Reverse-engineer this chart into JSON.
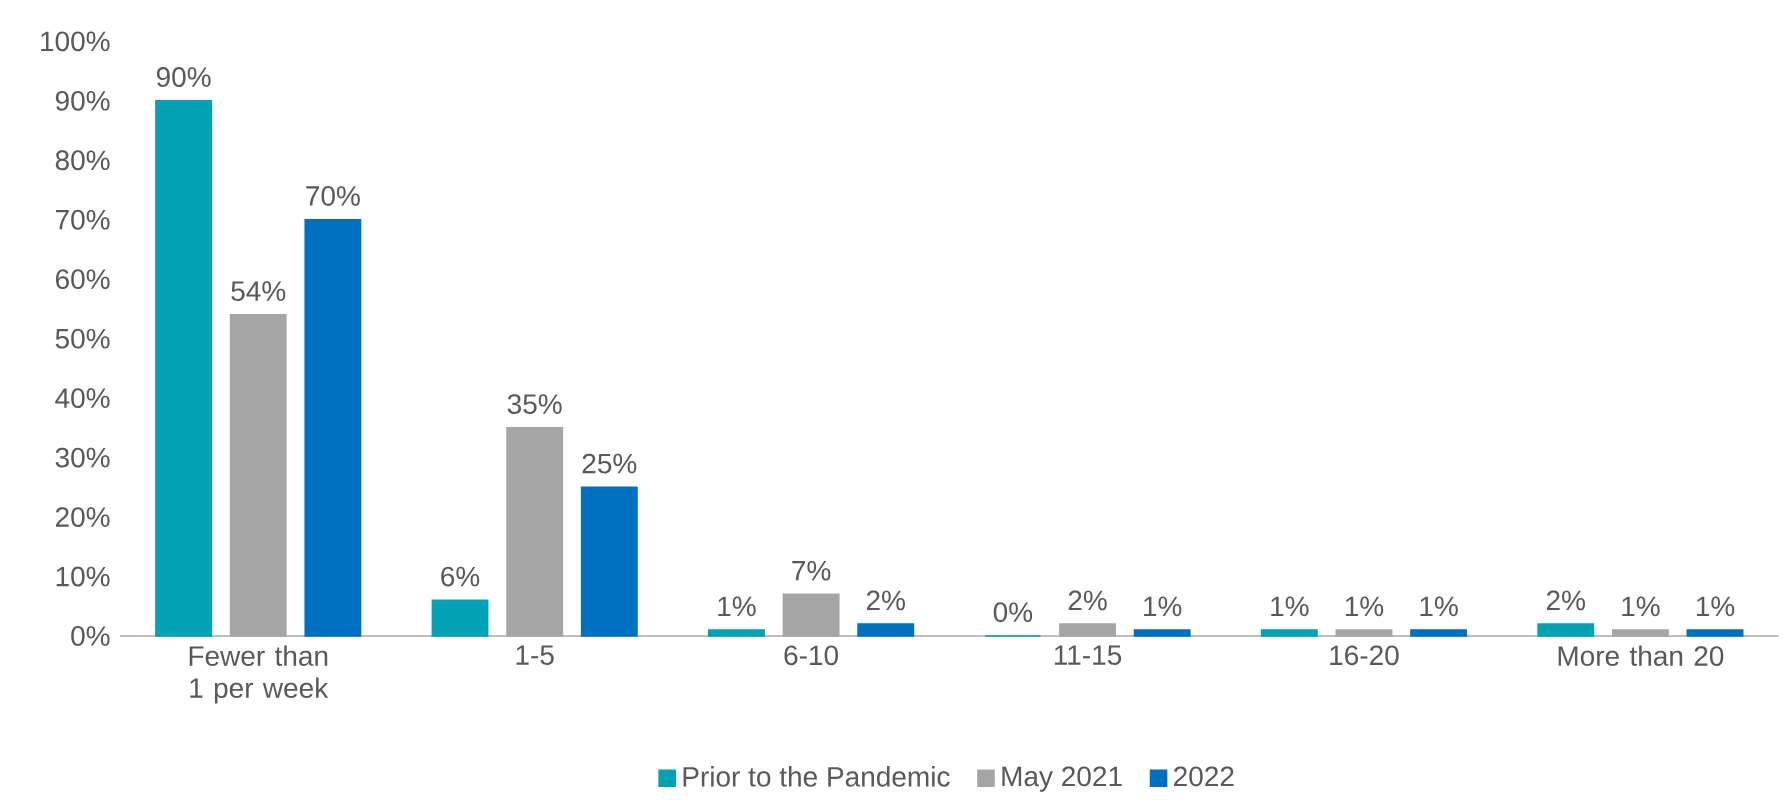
{
  "chart_data": {
    "type": "bar",
    "categories": [
      "Fewer than 1 per week",
      "1-5",
      "6-10",
      "11-15",
      "16-20",
      "More than 20"
    ],
    "series": [
      {
        "name": "Prior to the Pandemic",
        "color": "#00A2B4",
        "values": [
          90,
          6,
          1,
          0,
          1,
          2
        ],
        "value_labels": [
          "90%",
          "6%",
          "1%",
          "0%",
          "1%",
          "2%"
        ]
      },
      {
        "name": "May 2021",
        "color": "#A5A5A5",
        "values": [
          54,
          35,
          7,
          2,
          1,
          1
        ],
        "value_labels": [
          "54%",
          "35%",
          "7%",
          "2%",
          "1%",
          "1%"
        ]
      },
      {
        "name": "2022",
        "color": "#0070C0",
        "values": [
          70,
          25,
          2,
          1,
          1,
          1
        ],
        "value_labels": [
          "70%",
          "25%",
          "2%",
          "1%",
          "1%",
          "1%"
        ]
      }
    ],
    "ylim": [
      0,
      100
    ],
    "yticks": [
      {
        "value": 0,
        "label": "0%"
      },
      {
        "value": 10,
        "label": "10%"
      },
      {
        "value": 20,
        "label": "20%"
      },
      {
        "value": 30,
        "label": "30%"
      },
      {
        "value": 40,
        "label": "40%"
      },
      {
        "value": 50,
        "label": "50%"
      },
      {
        "value": 60,
        "label": "60%"
      },
      {
        "value": 70,
        "label": "70%"
      },
      {
        "value": 80,
        "label": "80%"
      },
      {
        "value": 90,
        "label": "90%"
      },
      {
        "value": 100,
        "label": "100%"
      }
    ],
    "legend": "bottom"
  }
}
